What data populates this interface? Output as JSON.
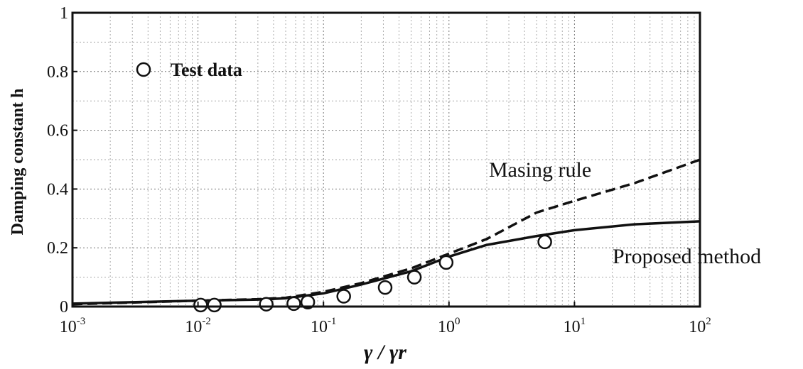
{
  "chart_data": {
    "type": "line",
    "xscale": "log",
    "xlim": [
      0.001,
      100
    ],
    "ylim": [
      0,
      1
    ],
    "grid": true,
    "xlabel": "γ / γr",
    "ylabel": "Damping constant h",
    "x_ticks": [
      {
        "base": "10",
        "exp": "-3",
        "value": 0.001
      },
      {
        "base": "10",
        "exp": "-2",
        "value": 0.01
      },
      {
        "base": "10",
        "exp": "-1",
        "value": 0.1
      },
      {
        "base": "10",
        "exp": "0",
        "value": 1
      },
      {
        "base": "10",
        "exp": "1",
        "value": 10
      },
      {
        "base": "10",
        "exp": "2",
        "value": 100
      }
    ],
    "y_ticks": [
      {
        "label": "0",
        "value": 0
      },
      {
        "label": "0.2",
        "value": 0.2
      },
      {
        "label": "0.4",
        "value": 0.4
      },
      {
        "label": "0.6",
        "value": 0.6
      },
      {
        "label": "0.8",
        "value": 0.8
      },
      {
        "label": "1",
        "value": 1
      }
    ],
    "legend": {
      "label": "Test data",
      "marker": "open-circle",
      "placement": "top-left"
    },
    "annotations": [
      "Masing rule",
      "Proposed method"
    ],
    "series": [
      {
        "name": "Test data",
        "kind": "scatter",
        "x": [
          0.0105,
          0.0135,
          0.035,
          0.058,
          0.075,
          0.145,
          0.31,
          0.53,
          0.95,
          5.8
        ],
        "y": [
          0.005,
          0.005,
          0.008,
          0.01,
          0.015,
          0.035,
          0.065,
          0.1,
          0.15,
          0.22
        ]
      },
      {
        "name": "Masing rule",
        "kind": "line",
        "style": "dashed",
        "x": [
          0.001,
          0.01,
          0.03,
          0.05,
          0.1,
          0.2,
          0.5,
          1,
          2,
          5,
          10,
          30,
          100
        ],
        "y": [
          0.008,
          0.02,
          0.025,
          0.03,
          0.05,
          0.08,
          0.13,
          0.18,
          0.23,
          0.32,
          0.36,
          0.42,
          0.5
        ]
      },
      {
        "name": "Proposed method",
        "kind": "line",
        "style": "solid",
        "x": [
          0.001,
          0.01,
          0.03,
          0.05,
          0.1,
          0.2,
          0.5,
          1,
          2,
          5,
          10,
          30,
          100
        ],
        "y": [
          0.01,
          0.02,
          0.024,
          0.028,
          0.045,
          0.075,
          0.12,
          0.17,
          0.21,
          0.24,
          0.26,
          0.28,
          0.29
        ]
      }
    ]
  }
}
